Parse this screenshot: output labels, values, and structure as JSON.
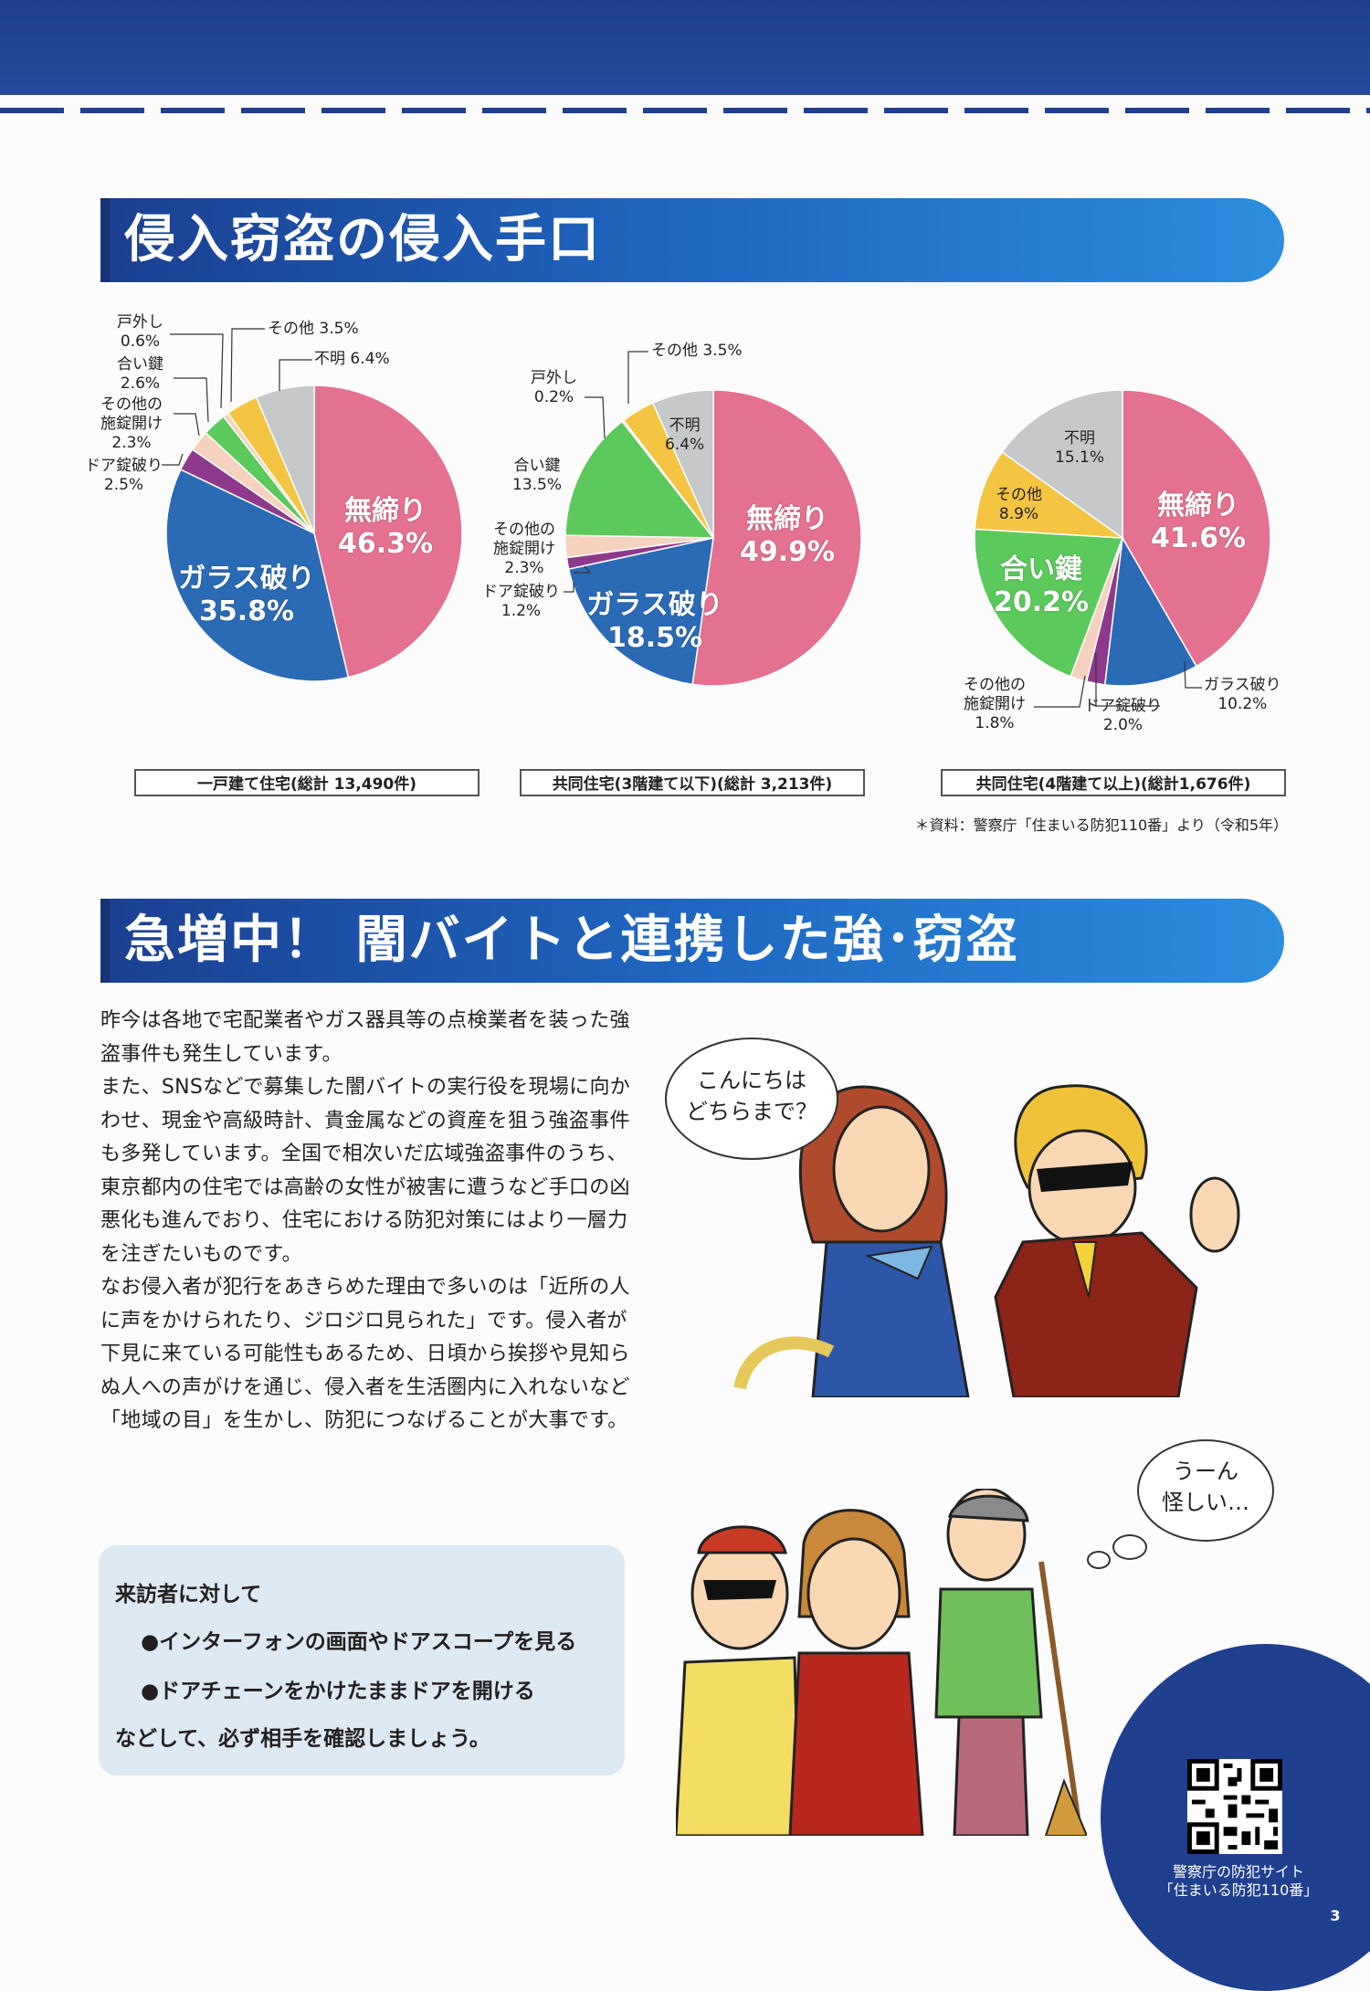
{
  "section1": {
    "title": "侵入窃盗の侵入手口"
  },
  "section2": {
    "title": "急増中！ 闇バイトと連携した強･窃盗"
  },
  "colors": {
    "navy": "#1f3f8f",
    "pink": "#e3718f",
    "blue": "#2b6ab5",
    "purple": "#8d3a8c",
    "peach": "#f6d1bd",
    "green": "#5bc95b",
    "orange": "#f4c542",
    "gray": "#c7c8ca"
  },
  "charts": {
    "c1": {
      "caption": "一戸建て住宅(総計 13,490件)",
      "big": {
        "a_name": "無締り",
        "a_pct": "46.3%",
        "b_name": "ガラス破り",
        "b_pct": "35.8%"
      },
      "labels": {
        "tosoto": "戸外し\n0.6%",
        "aikagi": "合い鍵\n2.6%",
        "sekijo": "その他の\n施錠開け\n2.3%",
        "door": "ドア錠破り\n2.5%",
        "sonota": "その他 3.5%",
        "fumei": "不明 6.4%"
      }
    },
    "c2": {
      "caption": "共同住宅(3階建て以下)(総計 3,213件)",
      "big": {
        "a_name": "無締り",
        "a_pct": "49.9%",
        "b_name": "ガラス破り",
        "b_pct": "18.5%"
      },
      "labels": {
        "tosoto": "戸外し\n0.2%",
        "aikagi": "合い鍵\n13.5%",
        "sekijo": "その他の\n施錠開け\n2.3%",
        "door": "ドア錠破り\n1.2%",
        "sonota": "その他 3.5%",
        "fumei": "不明\n6.4%"
      }
    },
    "c3": {
      "caption": "共同住宅(4階建て以上)(総計1,676件)",
      "big": {
        "a_name": "無締り",
        "a_pct": "41.6%",
        "b_name": "合い鍵",
        "b_pct": "20.2%"
      },
      "labels": {
        "glass": "ガラス破り\n10.2%",
        "door": "ドア錠破り\n2.0%",
        "sekijo": "その他の\n施錠開け\n1.8%",
        "sonota": "その他\n8.9%",
        "fumei": "不明\n15.1%"
      }
    },
    "source": "＊資料：警察庁「住まいる防犯110番」より（令和5年）"
  },
  "chart_data": [
    {
      "type": "pie",
      "title": "一戸建て住宅(総計 13,490件)",
      "categories": [
        "無締り",
        "ガラス破り",
        "ドア錠破り",
        "その他の施錠開け",
        "合い鍵",
        "戸外し",
        "その他",
        "不明"
      ],
      "values": [
        46.3,
        35.8,
        2.5,
        2.3,
        2.6,
        0.6,
        3.5,
        6.4
      ]
    },
    {
      "type": "pie",
      "title": "共同住宅(3階建て以下)(総計 3,213件)",
      "categories": [
        "無締り",
        "ガラス破り",
        "ドア錠破り",
        "その他の施錠開け",
        "合い鍵",
        "戸外し",
        "その他",
        "不明"
      ],
      "values": [
        49.9,
        18.5,
        1.2,
        2.3,
        13.5,
        0.2,
        3.5,
        6.4
      ]
    },
    {
      "type": "pie",
      "title": "共同住宅(4階建て以上)(総計1,676件)",
      "categories": [
        "無締り",
        "ガラス破り",
        "ドア錠破り",
        "その他の施錠開け",
        "合い鍵",
        "その他",
        "不明"
      ],
      "values": [
        41.6,
        10.2,
        2.0,
        1.8,
        20.2,
        8.9,
        15.1
      ]
    }
  ],
  "body": {
    "p1": "昨今は各地で宅配業者やガス器具等の点検業者を装った強盗事件も発生しています。",
    "p2": "また、SNSなどで募集した闇バイトの実行役を現場に向かわせ、現金や高級時計、貴金属などの資産を狙う強盗事件も多発しています。全国で相次いだ広域強盗事件のうち、東京都内の住宅では高齢の女性が被害に遭うなど手口の凶悪化も進んでおり、住宅における防犯対策にはより一層力を注ぎたいものです。",
    "p3": "なお侵入者が犯行をあきらめた理由で多いのは「近所の人に声をかけられたり、ジロジロ見られた」です。侵入者が下見に来ている可能性もあるため、日頃から挨拶や見知らぬ人への声がけを通じ、侵入者を生活圏内に入れないなど「地域の目」を生かし、防犯につなげることが大事です。"
  },
  "advice": {
    "heading": "来訪者に対して",
    "item1": "●インターフォンの画面やドアスコープを見る",
    "item2": "●ドアチェーンをかけたままドアを開ける",
    "closing": "などして、必ず相手を確認しましょう。"
  },
  "bubbles": {
    "b1": "こんにちは\nどちらまで？",
    "b2": "うーん\n怪しい…"
  },
  "footer": {
    "qr_caption": "警察庁の防犯サイト\n「住まいる防犯110番」",
    "page": "3"
  }
}
